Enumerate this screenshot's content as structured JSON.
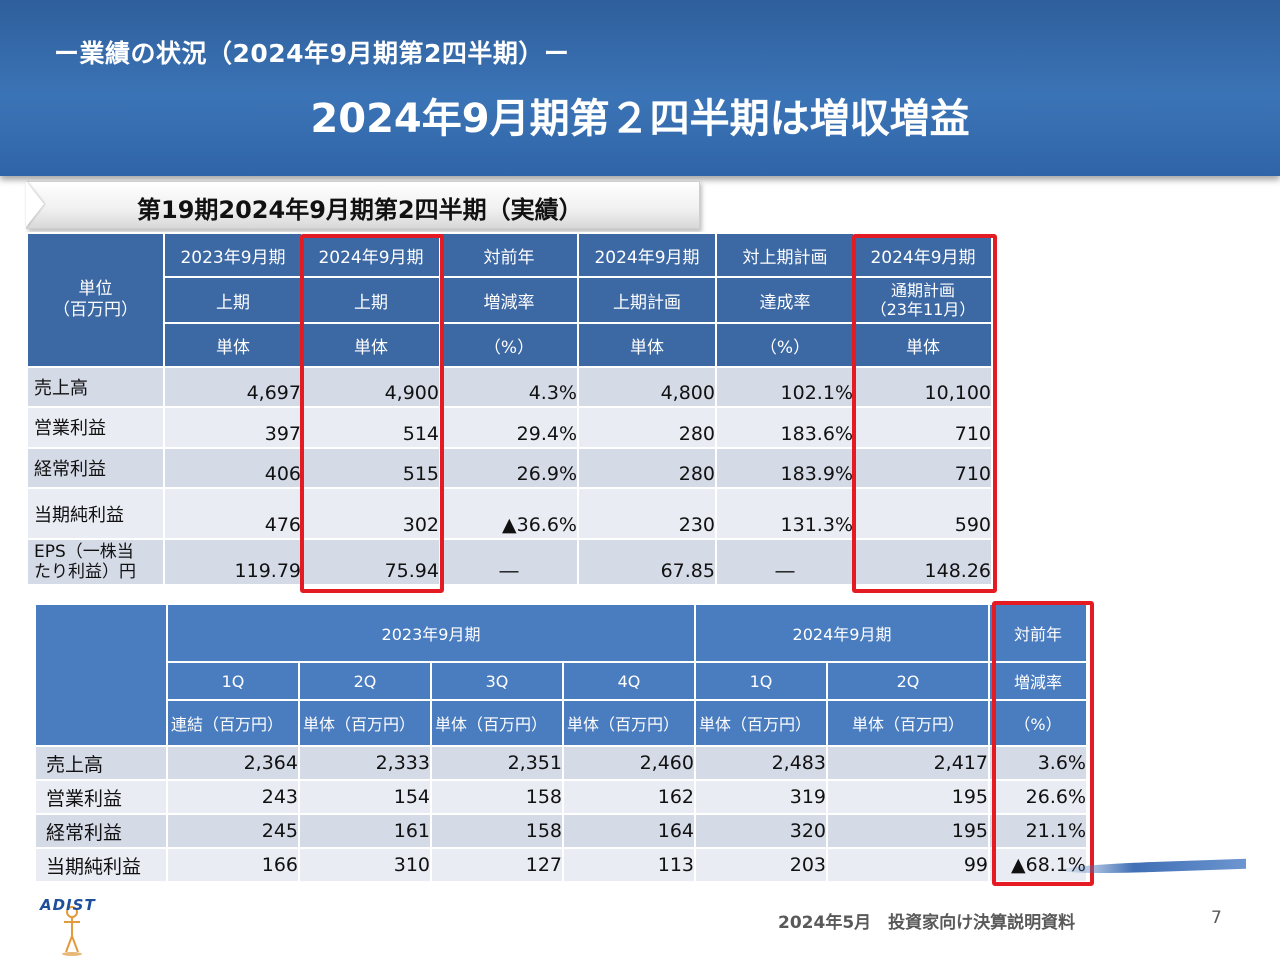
{
  "header": {
    "subtitle": "ー業績の状況（2024年9月期第2四半期）ー",
    "title": "2024年9月期第２四半期は増収増益"
  },
  "caption": "第19期2024年9月期第2四半期（実績）",
  "table1": {
    "unit_label": "単位\n（百万円）",
    "columns": [
      {
        "r1": "2023年9月期",
        "r2": "上期",
        "r3": "単体"
      },
      {
        "r1": "2024年9月期",
        "r2": "上期",
        "r3": "単体"
      },
      {
        "r1": "対前年",
        "r2": "増減率",
        "r3": "（%）"
      },
      {
        "r1": "2024年9月期",
        "r2": "上期計画",
        "r3": "単体"
      },
      {
        "r1": "対上期計画",
        "r2": "達成率",
        "r3": "（%）"
      },
      {
        "r1": "2024年9月期",
        "r2": "通期計画\n（23年11月）",
        "r3": "単体"
      }
    ],
    "rows": [
      {
        "label": "売上高",
        "values": [
          "4,697",
          "4,900",
          "4.3%",
          "4,800",
          "102.1%",
          "10,100"
        ]
      },
      {
        "label": "営業利益",
        "values": [
          "397",
          "514",
          "29.4%",
          "280",
          "183.6%",
          "710"
        ]
      },
      {
        "label": "経常利益",
        "values": [
          "406",
          "515",
          "26.9%",
          "280",
          "183.9%",
          "710"
        ]
      },
      {
        "label": "当期純利益",
        "values": [
          "476",
          "302",
          "▲36.6%",
          "230",
          "131.3%",
          "590"
        ]
      },
      {
        "label": "EPS（一株当\nたり利益）円",
        "values": [
          "119.79",
          "75.94",
          "―",
          "67.85",
          "―",
          "148.26"
        ]
      }
    ]
  },
  "table2": {
    "groups": [
      "2023年9月期",
      "2024年9月期",
      "対前年"
    ],
    "quarters": [
      "1Q",
      "2Q",
      "3Q",
      "4Q",
      "1Q",
      "2Q",
      "増減率"
    ],
    "units": [
      "連結（百万円）",
      "単体（百万円）",
      "単体（百万円）",
      "単体（百万円）",
      "単体（百万円）",
      "単体（百万円）",
      "（%）"
    ],
    "rows": [
      {
        "label": "売上高",
        "values": [
          "2,364",
          "2,333",
          "2,351",
          "2,460",
          "2,483",
          "2,417",
          "3.6%"
        ]
      },
      {
        "label": "営業利益",
        "values": [
          "243",
          "154",
          "158",
          "162",
          "319",
          "195",
          "26.6%"
        ]
      },
      {
        "label": "経常利益",
        "values": [
          "245",
          "161",
          "158",
          "164",
          "320",
          "195",
          "21.1%"
        ]
      },
      {
        "label": "当期純利益",
        "values": [
          "166",
          "310",
          "127",
          "113",
          "203",
          "99",
          "▲68.1%"
        ]
      }
    ]
  },
  "logo_text": "ADIST",
  "footer": {
    "doc_title": "2024年5月　投資家向け決算説明資料",
    "page": "7"
  },
  "colors": {
    "header_blue": "#3b74b6",
    "table_header": "#3c68a4",
    "highlight_red": "#e51b23"
  }
}
